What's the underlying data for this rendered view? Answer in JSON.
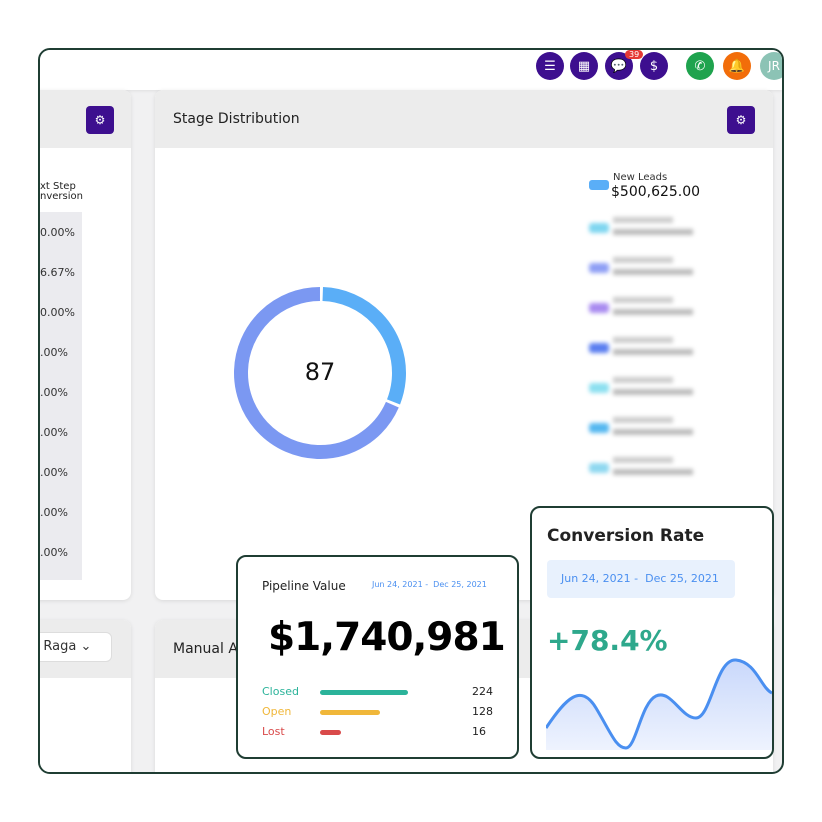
{
  "topbar": {
    "messages_badge": "39",
    "avatar_initials": "JR",
    "icons": [
      "list-icon",
      "calendar-icon",
      "chat-icon",
      "money-hand-icon",
      "phone-icon",
      "bell-icon"
    ]
  },
  "left_card": {
    "column_header_line1": "xt Step",
    "column_header_line2": "nversion",
    "values": [
      "0.00%",
      "6.67%",
      "0.00%",
      ".00%",
      ".00%",
      ".00%",
      ".00%",
      ".00%",
      ".00%"
    ]
  },
  "stage_distribution": {
    "title": "Stage Distribution",
    "total": "87",
    "legend": [
      {
        "label": "New Leads",
        "value": "$500,625.00",
        "color": "#5aaef7"
      }
    ],
    "blurred_legend_colors": [
      "#7fd6f0",
      "#8f9ff5",
      "#a98bf0",
      "#5b7ef0",
      "#8de0f0",
      "#56b8f0",
      "#8fd8f0"
    ],
    "donut": {
      "colors": [
        "#5aaef7",
        "#7b98f2"
      ],
      "fractions": [
        0.31,
        0.69
      ]
    }
  },
  "lower": {
    "filter_value": "n Raga",
    "card_title": "Manual A"
  },
  "pipeline": {
    "title": "Pipeline Value",
    "date_range": "Jun 24, 2021 -  Dec 25, 2021",
    "amount": "$1,740,981",
    "rows": [
      {
        "label": "Closed",
        "count": "224",
        "color": "#2bb39a",
        "fraction": 0.5
      },
      {
        "label": "Open",
        "count": "128",
        "color": "#f0b73a",
        "fraction": 0.34
      },
      {
        "label": "Lost",
        "count": "16",
        "color": "#d94a4a",
        "fraction": 0.12
      }
    ]
  },
  "conversion": {
    "title": "Conversion Rate",
    "date_range": "Jun 24, 2021 -  Dec 25, 2021",
    "rate": "+78.4%",
    "rate_color": "#2ea88c",
    "line_color": "#4a8ff0"
  }
}
